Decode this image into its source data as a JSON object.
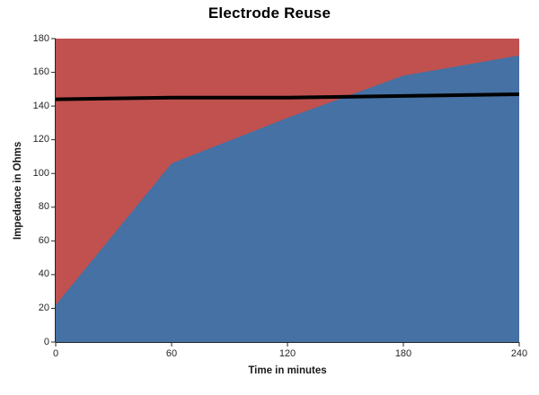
{
  "title": "Electrode Reuse",
  "colors": {
    "blue_area": "#4571a4",
    "red_area": "#c0514f",
    "baseline_line": "#000000",
    "axis": "#262626",
    "tick_text": "#262626"
  },
  "chart_data": {
    "type": "area",
    "title": "Electrode Reuse",
    "xlabel": "Time in minutes",
    "ylabel": "Impedance in Ohms",
    "x": [
      0,
      60,
      120,
      180,
      240
    ],
    "series": [
      {
        "name": "red_background_area",
        "render": "fill_to_top",
        "color": "#c0514f",
        "values": [
          180,
          180,
          180,
          180,
          180
        ]
      },
      {
        "name": "blue_area",
        "render": "area",
        "color": "#4571a4",
        "values": [
          22,
          106,
          133,
          158,
          170
        ]
      },
      {
        "name": "black_baseline_line",
        "render": "line",
        "color": "#000000",
        "stroke_width": 4,
        "values": [
          144,
          145,
          145,
          146,
          147
        ]
      }
    ],
    "xlim": [
      0,
      240
    ],
    "ylim": [
      0,
      180
    ],
    "x_ticks": [
      0,
      60,
      120,
      180,
      240
    ],
    "y_ticks": [
      0,
      20,
      40,
      60,
      80,
      100,
      120,
      140,
      160,
      180
    ],
    "grid": false,
    "legend": false
  }
}
